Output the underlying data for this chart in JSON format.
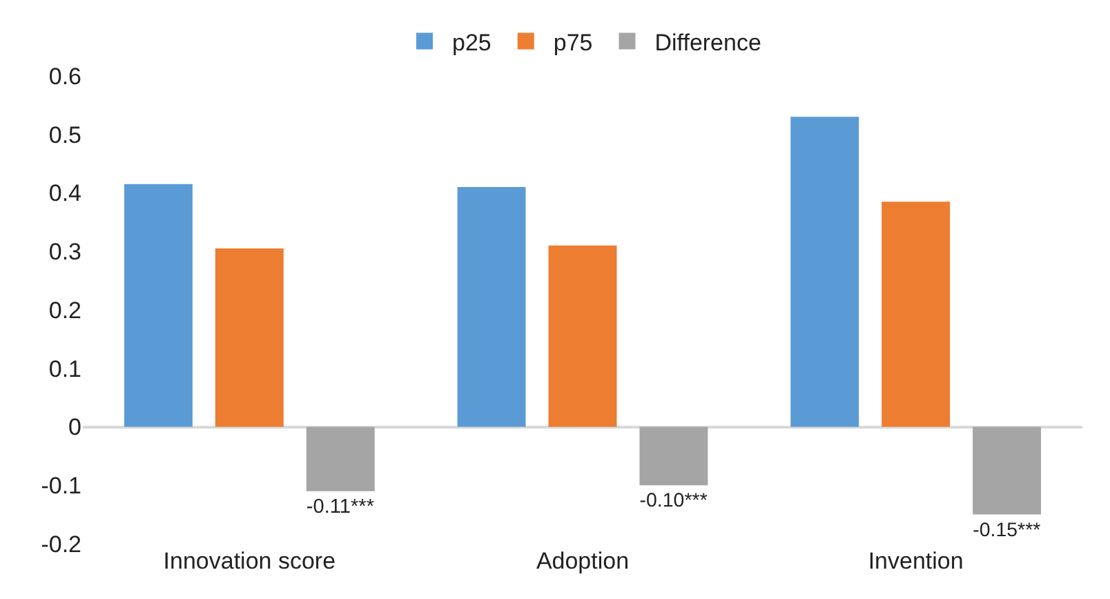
{
  "chart_data": {
    "type": "bar",
    "categories": [
      "Innovation score",
      "Adoption",
      "Invention"
    ],
    "series": [
      {
        "name": "p25",
        "color": "#5b9bd5",
        "values": [
          0.415,
          0.41,
          0.53
        ]
      },
      {
        "name": "p75",
        "color": "#ed7d31",
        "values": [
          0.305,
          0.31,
          0.385
        ]
      },
      {
        "name": "Difference",
        "color": "#a5a5a5",
        "values": [
          -0.11,
          -0.1,
          -0.15
        ],
        "value_labels": [
          "-0.11***",
          "-0.10***",
          "-0.15***"
        ]
      }
    ],
    "ylim": [
      -0.2,
      0.6
    ],
    "yticks": [
      {
        "value": -0.2,
        "label": "-0.2"
      },
      {
        "value": -0.1,
        "label": "-0.1"
      },
      0,
      0.1,
      0.2,
      0.3,
      0.4,
      0.5,
      0.6
    ],
    "legend": "top"
  }
}
